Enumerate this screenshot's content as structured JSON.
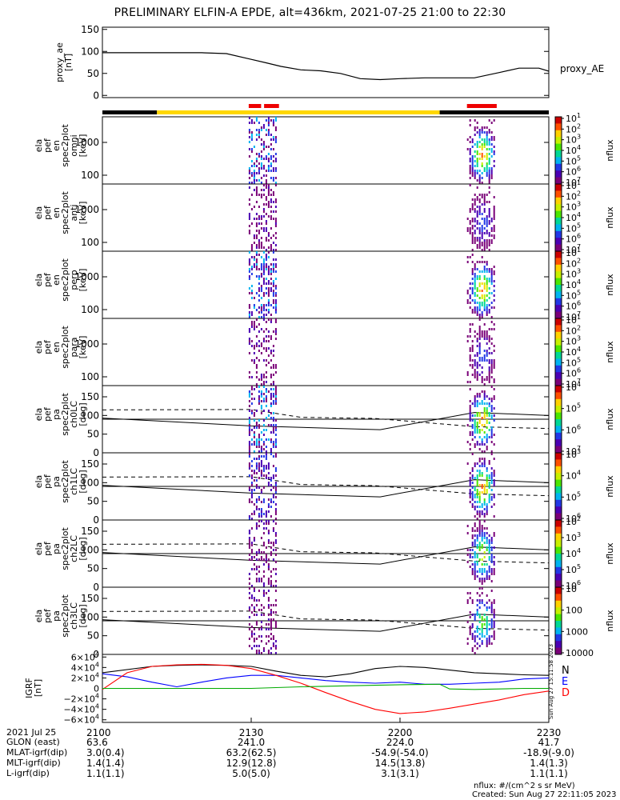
{
  "title": "PRELIMINARY ELFIN-A EPDE, alt=436km, 2021-07-25 21:00 to 22:30",
  "colors": {
    "bar_black": "#000000",
    "bar_yellow": "#ffd700",
    "bar_red": "#ee0000",
    "N": "#000000",
    "E": "#0000ff",
    "D": "#ff0000",
    "G": "#00aa00"
  },
  "chart_data": [
    {
      "type": "line",
      "id": "proxy_ae",
      "ylabel": "proxy_ae\n[nT]",
      "legend": "proxy_AE",
      "ylim": [
        -5,
        155
      ],
      "yticks": [
        0,
        50,
        100,
        150
      ],
      "x_minutes": [
        0,
        10,
        20,
        25,
        30,
        33,
        36,
        40,
        44,
        48,
        52,
        56,
        60,
        65,
        70,
        75,
        80,
        84,
        86,
        88,
        90
      ],
      "values": [
        97,
        97,
        97,
        95,
        82,
        74,
        66,
        58,
        56,
        50,
        38,
        36,
        38,
        40,
        40,
        40,
        52,
        62,
        62,
        62,
        55
      ]
    },
    {
      "type": "bar",
      "id": "state_bar",
      "segments": [
        {
          "from": 0,
          "to": 11,
          "color": "black"
        },
        {
          "from": 11,
          "to": 68,
          "color": "yellow"
        },
        {
          "from": 68,
          "to": 90,
          "color": "black"
        }
      ],
      "red": [
        {
          "from": 29.5,
          "to": 32.0
        },
        {
          "from": 32.6,
          "to": 35.6
        },
        {
          "from": 73.5,
          "to": 79.5
        }
      ]
    },
    {
      "type": "heatmap",
      "id": "en_omni",
      "ylabel": "ela\npef\nen\nspec2plot\nomni\n[keV]",
      "yticks": [
        "1000",
        "100"
      ],
      "zlabel": "nflux",
      "zticks": [
        "10",
        "10",
        "10",
        "10",
        "10",
        "10",
        "10"
      ],
      "zexp": [
        "1",
        "2",
        "3",
        "4",
        "5",
        "6",
        "7"
      ],
      "burst1": {
        "x": [
          29.5,
          35.5
        ],
        "peak": 4
      },
      "burst2": {
        "x": [
          73.5,
          79.5
        ],
        "peak": 6
      }
    },
    {
      "type": "heatmap",
      "id": "en_anti",
      "ylabel": "ela\npef\nen\nspec2plot\nanti\n[keV]",
      "yticks": [
        "1000",
        "100"
      ],
      "zlabel": "nflux",
      "zticks": [
        "10",
        "10",
        "10",
        "10",
        "10",
        "10",
        "10"
      ],
      "zexp": [
        "1",
        "2",
        "3",
        "4",
        "5",
        "6",
        "7"
      ],
      "burst1": {
        "x": [
          29.5,
          35.5
        ],
        "peak": 2
      },
      "burst2": {
        "x": [
          73.5,
          79.5
        ],
        "peak": 2
      }
    },
    {
      "type": "heatmap",
      "id": "en_perp",
      "ylabel": "ela\npef\nen\nspec2plot\nperp\n[keV]",
      "yticks": [
        "1000",
        "100"
      ],
      "zlabel": "nflux",
      "zticks": [
        "10",
        "10",
        "10",
        "10",
        "10",
        "10",
        "10"
      ],
      "zexp": [
        "1",
        "2",
        "3",
        "4",
        "5",
        "6",
        "7"
      ],
      "burst1": {
        "x": [
          29.5,
          35.5
        ],
        "peak": 4
      },
      "burst2": {
        "x": [
          73.5,
          79.5
        ],
        "peak": 6
      }
    },
    {
      "type": "heatmap",
      "id": "en_para",
      "ylabel": "ela\npef\nen\nspec2plot\npara\n[keV]",
      "yticks": [
        "1000",
        "100"
      ],
      "zlabel": "nflux",
      "zticks": [
        "10",
        "10",
        "10",
        "10",
        "10",
        "10",
        "10"
      ],
      "zexp": [
        "1",
        "2",
        "3",
        "4",
        "5",
        "6",
        "7"
      ],
      "burst1": {
        "x": [
          29.5,
          35.5
        ],
        "peak": 2
      },
      "burst2": {
        "x": [
          73.5,
          79.5
        ],
        "peak": 2
      }
    },
    {
      "type": "heatmap",
      "id": "pa_ch0",
      "ylabel": "ela\npef\npa\nspec2plot\nch0LC\n[deg]",
      "yticks": [
        "0",
        "50",
        "100",
        "150"
      ],
      "zlabel": "nflux",
      "zticks": [
        "10",
        "10",
        "10",
        "10"
      ],
      "zexp": [
        "4",
        "5",
        "6",
        "7"
      ],
      "burst1": {
        "x": [
          29.5,
          35.5
        ],
        "peak": 4
      },
      "burst2": {
        "x": [
          73.5,
          79.5
        ],
        "peak": 6
      }
    },
    {
      "type": "heatmap",
      "id": "pa_ch1",
      "ylabel": "ela\npef\npa\nspec2plot\nch1LC\n[deg]",
      "yticks": [
        "0",
        "50",
        "100",
        "150"
      ],
      "zlabel": "nflux",
      "zticks": [
        "10",
        "10",
        "10",
        "10"
      ],
      "zexp": [
        "3",
        "4",
        "5",
        "6"
      ],
      "burst1": {
        "x": [
          29.5,
          35.5
        ],
        "peak": 3
      },
      "burst2": {
        "x": [
          73.5,
          79.5
        ],
        "peak": 6
      }
    },
    {
      "type": "heatmap",
      "id": "pa_ch2",
      "ylabel": "ela\npef\npa\nspec2plot\nch2LC\n[deg]",
      "yticks": [
        "0",
        "50",
        "100",
        "150"
      ],
      "zlabel": "nflux",
      "zticks": [
        "10",
        "10",
        "10",
        "10",
        "10"
      ],
      "zexp": [
        "2",
        "3",
        "4",
        "5",
        "6"
      ],
      "burst1": {
        "x": [
          29.5,
          35.5
        ],
        "peak": 2
      },
      "burst2": {
        "x": [
          73.5,
          79.5
        ],
        "peak": 5
      }
    },
    {
      "type": "heatmap",
      "id": "pa_ch3",
      "ylabel": "ela\npef\npa\nspec2plot\nch3LC\n[deg]",
      "yticks": [
        "0",
        "50",
        "100",
        "150"
      ],
      "zlabel": "nflux",
      "zticks": [
        "10000",
        "1000",
        "100",
        "10"
      ],
      "zexp": [
        "",
        "",
        "",
        ""
      ],
      "burst1": {
        "x": [
          29.5,
          35.5
        ],
        "peak": 2
      },
      "burst2": {
        "x": [
          73.5,
          79.5
        ],
        "peak": 4
      }
    },
    {
      "type": "line",
      "id": "igrf",
      "ylabel": "IGRF\n[nT]",
      "ylim": [
        -65000,
        65000
      ],
      "yticks": [
        "6×10",
        "4×10",
        "2×10",
        "0",
        "−2×10",
        "−4×10",
        "−6×10"
      ],
      "yexp": "4",
      "legend": [
        "N",
        "E",
        "D"
      ],
      "series": [
        {
          "name": "N",
          "x": [
            0,
            10,
            15,
            20,
            25,
            30,
            35,
            40,
            45,
            50,
            55,
            60,
            65,
            70,
            75,
            80,
            85,
            90
          ],
          "values": [
            30000,
            42000,
            44000,
            45000,
            44000,
            42000,
            33000,
            25000,
            22000,
            28000,
            38000,
            42000,
            40000,
            35000,
            30000,
            28000,
            26000,
            25000
          ]
        },
        {
          "name": "E",
          "x": [
            0,
            5,
            10,
            15,
            20,
            25,
            30,
            35,
            40,
            45,
            50,
            55,
            60,
            65,
            70,
            75,
            80,
            85,
            90
          ],
          "values": [
            28000,
            22000,
            12000,
            3000,
            12000,
            20000,
            25000,
            25000,
            20000,
            15000,
            12000,
            10000,
            12000,
            8000,
            8000,
            10000,
            12000,
            18000,
            20000
          ]
        },
        {
          "name": "D",
          "x": [
            0,
            5,
            10,
            15,
            20,
            25,
            30,
            35,
            40,
            45,
            50,
            55,
            60,
            65,
            70,
            75,
            80,
            85,
            90
          ],
          "values": [
            -2000,
            30000,
            42000,
            45000,
            46000,
            44000,
            38000,
            25000,
            10000,
            -8000,
            -25000,
            -40000,
            -48000,
            -45000,
            -38000,
            -30000,
            -22000,
            -12000,
            -5000
          ]
        },
        {
          "name": "G",
          "x": [
            0,
            30,
            40,
            50,
            60,
            68,
            70,
            75,
            80,
            85,
            90
          ],
          "values": [
            0,
            0,
            3000,
            5000,
            7000,
            8000,
            -1000,
            -2000,
            -1000,
            0,
            0
          ]
        }
      ]
    }
  ],
  "side_stamp": "Sun Aug 27 15:11:58 2023",
  "footer": {
    "rows": [
      {
        "label": "2021 Jul 25",
        "vals": [
          "2100",
          "2130",
          "2200",
          "2230"
        ]
      },
      {
        "label": "GLON (east)",
        "vals": [
          "63.6",
          "241.0",
          "224.0",
          "41.7"
        ]
      },
      {
        "label": "MLAT-igrf(dip)",
        "vals": [
          "3.0(0.4)",
          "63.2(62.5)",
          "-54.9(-54.0)",
          "-18.9(-9.0)"
        ]
      },
      {
        "label": "MLT-igrf(dip)",
        "vals": [
          "1.4(1.4)",
          "12.9(12.8)",
          "14.5(13.8)",
          "1.4(1.3)"
        ]
      },
      {
        "label": "L-igrf(dip)",
        "vals": [
          "1.1(1.1)",
          "5.0(5.0)",
          "3.1(3.1)",
          "1.1(1.1)"
        ]
      }
    ],
    "note1": "nflux: #/(cm^2 s sr MeV)",
    "note2": "Created: Sun Aug 27 22:11:05 2023"
  }
}
